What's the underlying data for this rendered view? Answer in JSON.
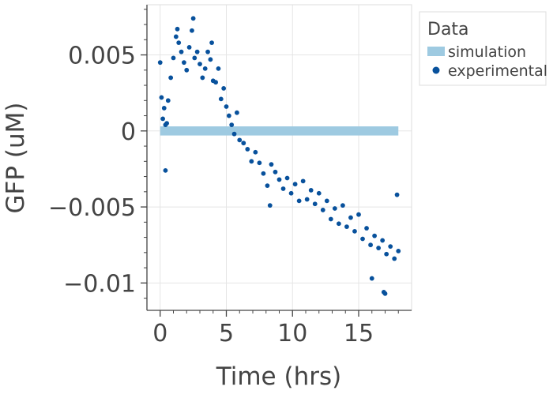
{
  "chart_data": {
    "type": "scatter",
    "xlabel": "Time (hrs)",
    "ylabel": "GFP (uM)",
    "xlim": [
      -1,
      19
    ],
    "ylim": [
      -0.0118,
      0.0083
    ],
    "x_ticks": [
      0,
      5,
      10,
      15
    ],
    "x_tick_labels": [
      "0",
      "5",
      "10",
      "15"
    ],
    "y_ticks": [
      0.005,
      0,
      -0.005,
      -0.01
    ],
    "y_tick_labels": [
      "0.005",
      "0",
      "−0.005",
      "−0.01"
    ],
    "grid": true,
    "legend": {
      "title": "Data",
      "placement": "right",
      "entries": [
        "simulation",
        "experimental"
      ]
    },
    "colors": {
      "simulation": "#9ecae1",
      "experimental": "#08519c",
      "grid": "#e5e5e5",
      "axis": "#444444"
    },
    "series": [
      {
        "name": "simulation",
        "kind": "band",
        "x": [
          0,
          18
        ],
        "y": [
          0,
          0
        ],
        "band_halfwidth": 0.0003
      },
      {
        "name": "experimental",
        "kind": "scatter",
        "x": [
          0.0,
          0.1,
          0.2,
          0.3,
          0.4,
          0.5,
          0.6,
          0.8,
          1.0,
          1.2,
          1.4,
          1.6,
          1.8,
          2.0,
          2.2,
          2.4,
          2.6,
          2.8,
          3.0,
          3.2,
          3.4,
          3.6,
          3.8,
          4.0,
          4.2,
          4.4,
          4.6,
          4.8,
          5.0,
          5.2,
          5.4,
          5.6,
          5.8,
          6.0,
          6.3,
          6.6,
          6.9,
          7.2,
          7.5,
          7.8,
          8.1,
          8.4,
          8.7,
          9.0,
          9.3,
          9.6,
          9.9,
          10.2,
          10.5,
          10.8,
          11.1,
          11.4,
          11.7,
          12.0,
          12.3,
          12.6,
          12.9,
          13.2,
          13.5,
          13.8,
          14.1,
          14.4,
          14.7,
          15.0,
          15.3,
          15.6,
          15.9,
          16.2,
          16.5,
          16.8,
          17.1,
          17.4,
          17.7,
          18.0,
          0.4,
          1.3,
          2.5,
          3.9,
          16.0,
          16.9,
          17.0,
          17.9,
          8.3
        ],
        "y": [
          0.0045,
          0.0022,
          0.0008,
          0.0015,
          -0.0026,
          0.0005,
          0.002,
          0.0035,
          0.0048,
          0.0062,
          0.0058,
          0.0052,
          0.0045,
          0.004,
          0.0055,
          0.0066,
          0.0048,
          0.0052,
          0.0044,
          0.0035,
          0.0041,
          0.0052,
          0.0047,
          0.0033,
          0.0032,
          0.0041,
          0.0021,
          0.0028,
          0.0016,
          0.001,
          0.0004,
          -0.0002,
          0.0012,
          -0.0006,
          -0.0008,
          -0.0012,
          -0.002,
          -0.0014,
          -0.0021,
          -0.0028,
          -0.0036,
          -0.0022,
          -0.0027,
          -0.0032,
          -0.0038,
          -0.0031,
          -0.0041,
          -0.0035,
          -0.0046,
          -0.0033,
          -0.0045,
          -0.0039,
          -0.0048,
          -0.0041,
          -0.0052,
          -0.0046,
          -0.0058,
          -0.0051,
          -0.0061,
          -0.0049,
          -0.0063,
          -0.0057,
          -0.0066,
          -0.0055,
          -0.0071,
          -0.0064,
          -0.0075,
          -0.0069,
          -0.0077,
          -0.0072,
          -0.0081,
          -0.0076,
          -0.0084,
          -0.0079,
          0.0004,
          0.0067,
          0.0074,
          0.0058,
          -0.0097,
          -0.0106,
          -0.0107,
          -0.0042,
          -0.0049
        ]
      }
    ]
  }
}
